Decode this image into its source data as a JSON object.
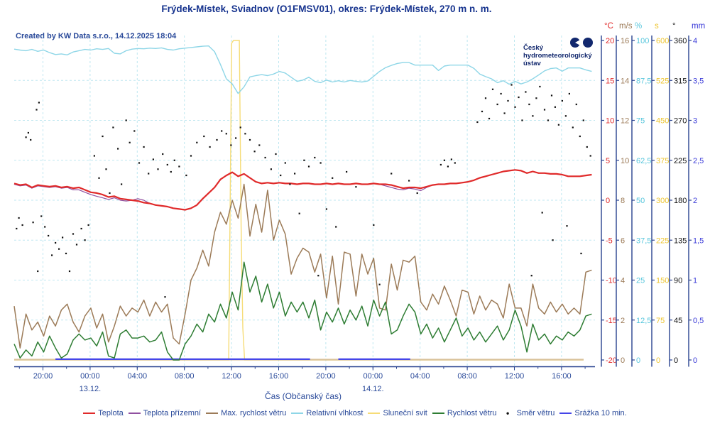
{
  "title": "Frýdek-Místek, Sviadnov (O1FMSV01), okres: Frýdek-Místek, 270 m n. m.",
  "created_by": "Created by KW Data s.r.o., 14.12.2025 18:04",
  "logo": {
    "line1": "Český",
    "line2": "hydrometeorologický",
    "line3": "ústav"
  },
  "xaxis": {
    "label": "Čas (Občanský čas)",
    "ticks": [
      "20:00",
      "00:00",
      "04:00",
      "08:00",
      "12:00",
      "16:00",
      "20:00",
      "00:00",
      "04:00",
      "08:00",
      "12:00",
      "16:00"
    ],
    "dates": [
      {
        "label": "13.12.",
        "tick_index": 1
      },
      {
        "label": "14.12.",
        "tick_index": 7
      }
    ]
  },
  "axes": [
    {
      "unit": "°C",
      "color": "#e02a2a",
      "scale": "temp",
      "labels": [
        "20",
        "15",
        "10",
        "5",
        "0",
        "-5",
        "-10",
        "-15",
        "-20"
      ]
    },
    {
      "unit": "m/s",
      "color": "#9c7b58",
      "scale": "wind",
      "labels": [
        "16",
        "14",
        "12",
        "10",
        "8",
        "6",
        "4",
        "2",
        "0"
      ]
    },
    {
      "unit": "%",
      "color": "#59c7dd",
      "scale": "hum",
      "labels": [
        "100",
        "87,5",
        "75",
        "62,5",
        "50",
        "37,5",
        "25",
        "12,5",
        "0"
      ]
    },
    {
      "unit": "s",
      "color": "#edc52f",
      "scale": "sun",
      "labels": [
        "600",
        "525",
        "450",
        "375",
        "300",
        "225",
        "150",
        "75",
        "0"
      ]
    },
    {
      "unit": "°",
      "color": "#111111",
      "scale": "dir",
      "labels": [
        "360",
        "315",
        "270",
        "225",
        "180",
        "135",
        "90",
        "45",
        "0"
      ]
    },
    {
      "unit": "mm",
      "color": "#3939d8",
      "scale": "mm",
      "labels": [
        "4",
        "3,5",
        "3",
        "2,5",
        "2",
        "1,5",
        "1",
        "0,5",
        "0"
      ]
    }
  ],
  "legend": [
    {
      "label": "Teplota",
      "color": "#e02a2a",
      "type": "line"
    },
    {
      "label": "Teplota přízemní",
      "color": "#9050a0",
      "type": "line"
    },
    {
      "label": "Max. rychlost větru",
      "color": "#9c7b58",
      "type": "line"
    },
    {
      "label": "Relativní vlhkost",
      "color": "#8ed6e7",
      "type": "line"
    },
    {
      "label": "Sluneční svit",
      "color": "#f6dc77",
      "type": "line"
    },
    {
      "label": "Rychlost větru",
      "color": "#2e7d33",
      "type": "line"
    },
    {
      "label": "Směr větru",
      "color": "#111111",
      "type": "dot"
    },
    {
      "label": "Srážka 10 min.",
      "color": "#4545e8",
      "type": "line"
    }
  ],
  "chart_data": {
    "type": "line",
    "title": "Frýdek-Místek, Sviadnov (O1FMSV01) meteogram, 12.12. 17:40 - 14.12. 18:00",
    "x_unit": "hours_from_start",
    "t_start": 0,
    "t_step": 0.5,
    "t_end": 49,
    "scales": {
      "temp": [
        -20,
        20
      ],
      "wind": [
        0,
        16
      ],
      "hum": [
        0,
        100
      ],
      "sun": [
        0,
        600
      ],
      "dir": [
        0,
        360
      ],
      "mm": [
        0,
        4
      ]
    },
    "series": [
      {
        "name": "Relativní vlhkost",
        "scale": "hum",
        "color": "#8ed6e7",
        "width": 1.4,
        "values": [
          97.3,
          97.0,
          96.8,
          97.2,
          96.6,
          97.0,
          96.2,
          95.6,
          95.8,
          95.5,
          96.4,
          96.8,
          97.2,
          97.0,
          97.4,
          97.2,
          97.5,
          96.0,
          95.8,
          96.8,
          97.3,
          97.5,
          97.4,
          97.6,
          97.5,
          97.7,
          97.2,
          97.0,
          97.4,
          97.6,
          97.8,
          98.0,
          98.2,
          98.3,
          96.5,
          92.5,
          88.0,
          86.4,
          83.4,
          85.5,
          88.6,
          89.0,
          89.3,
          89.0,
          89.5,
          90.3,
          89.8,
          88.5,
          87.2,
          87.6,
          88.5,
          87.2,
          86.8,
          87.6,
          87.0,
          87.4,
          87.0,
          87.5,
          87.2,
          87.0,
          87.3,
          88.8,
          90.3,
          91.5,
          92.2,
          92.8,
          93.1,
          93.1,
          92.3,
          92.3,
          92.3,
          92.3,
          90.6,
          92.0,
          92.3,
          92.3,
          92.3,
          92.3,
          91.3,
          89.5,
          88.7,
          88.0,
          86.8,
          87.4,
          86.3,
          87.2,
          86.4,
          87.0,
          88.0,
          89.2,
          90.5,
          91.2,
          91.4,
          90.4,
          91.4,
          91.4,
          91.4,
          90.8,
          90.3
        ]
      },
      {
        "name": "Max. rychlost větru",
        "scale": "wind",
        "color": "#9c7b58",
        "width": 1.5,
        "values": [
          2.7,
          0.6,
          2.3,
          1.5,
          1.9,
          1.2,
          2.2,
          1.7,
          2.5,
          2.8,
          1.9,
          1.4,
          2.2,
          2.6,
          1.6,
          2.3,
          0.9,
          1.7,
          2.7,
          2.2,
          2.6,
          2.4,
          3.0,
          2.2,
          2.9,
          2.4,
          2.8,
          1.1,
          0.8,
          2.3,
          4.0,
          4.6,
          5.5,
          4.7,
          6.4,
          7.4,
          6.8,
          8.0,
          7.1,
          8.8,
          6.2,
          7.8,
          6.4,
          8.5,
          6.0,
          7.0,
          6.3,
          4.3,
          5.1,
          5.6,
          5.4,
          4.4,
          5.3,
          3.1,
          5.2,
          2.8,
          5.4,
          5.3,
          3.2,
          5.3,
          4.3,
          5.1,
          2.6,
          2.5,
          4.8,
          3.5,
          5.0,
          4.9,
          5.2,
          2.9,
          2.5,
          3.3,
          2.8,
          3.7,
          3.0,
          2.2,
          3.5,
          3.4,
          2.3,
          3.2,
          2.5,
          3.0,
          2.8,
          2.1,
          3.8,
          2.6,
          2.6,
          1.7,
          3.8,
          2.6,
          2.3,
          2.9,
          2.4,
          2.8,
          2.3,
          2.6,
          2.3,
          4.4,
          4.5
        ]
      },
      {
        "name": "Rychlost větru",
        "scale": "wind",
        "color": "#2e7d33",
        "width": 1.5,
        "values": [
          0.8,
          0.1,
          0.5,
          0.2,
          0.9,
          0.4,
          1.2,
          0.6,
          0.1,
          0.3,
          1.0,
          1.3,
          1.0,
          1.1,
          0.7,
          1.4,
          0.2,
          0.1,
          1.3,
          1.5,
          1.1,
          1.1,
          1.2,
          0.9,
          1.0,
          1.4,
          0.4,
          0.0,
          0.0,
          0.8,
          1.2,
          1.8,
          1.4,
          2.3,
          1.9,
          2.8,
          2.1,
          3.4,
          2.5,
          4.9,
          3.4,
          4.2,
          2.9,
          3.8,
          2.6,
          3.4,
          2.2,
          2.9,
          2.4,
          2.9,
          2.1,
          3.0,
          1.5,
          2.4,
          1.9,
          2.6,
          1.8,
          2.5,
          2.0,
          2.7,
          1.7,
          3.0,
          2.2,
          2.9,
          1.3,
          1.5,
          2.2,
          2.8,
          2.4,
          1.3,
          1.8,
          1.1,
          1.6,
          0.9,
          1.5,
          2.1,
          1.2,
          1.6,
          1.0,
          1.4,
          0.9,
          1.3,
          1.7,
          1.0,
          1.5,
          2.5,
          1.7,
          0.4,
          1.8,
          1.0,
          1.3,
          0.8,
          1.2,
          1.0,
          1.4,
          1.2,
          1.5,
          2.2,
          2.3
        ]
      },
      {
        "name": "Teplota přízemní",
        "scale": "temp",
        "color": "#9050a0",
        "width": 1.2,
        "values": [
          2.0,
          1.8,
          1.9,
          1.5,
          1.8,
          1.7,
          1.6,
          1.7,
          1.5,
          1.6,
          1.3,
          1.3,
          1.0,
          0.7,
          0.5,
          0.3,
          0.1,
          0.3,
          0.0,
          -0.1,
          0.0,
          0.2,
          0.0,
          -0.4,
          -0.6,
          -0.7,
          -0.8,
          -1.0,
          -1.1,
          -1.2,
          -1.0,
          -0.6,
          0.2,
          0.9,
          1.6,
          2.6,
          3.1,
          3.5,
          3.0,
          3.3,
          2.8,
          2.3,
          2.1,
          2.2,
          2.1,
          2.2,
          2.1,
          2.1,
          2.0,
          2.1,
          2.1,
          2.0,
          2.0,
          2.1,
          2.0,
          2.1,
          2.0,
          2.0,
          2.1,
          2.0,
          2.0,
          2.1,
          2.0,
          1.8,
          1.6,
          1.4,
          1.3,
          1.5,
          1.4,
          1.2,
          1.6,
          1.9,
          2.0,
          2.0,
          2.1,
          2.1,
          2.2,
          2.3,
          2.5,
          2.8,
          3.0,
          3.2,
          3.4,
          3.6,
          3.7,
          3.8,
          3.7,
          3.4,
          3.6,
          3.4,
          3.4,
          3.3,
          3.3,
          3.2,
          3.0,
          3.0,
          3.0,
          3.1,
          3.2
        ]
      },
      {
        "name": "Teplota",
        "scale": "temp",
        "color": "#e02a2a",
        "width": 2.2,
        "values": [
          2.1,
          1.9,
          2.0,
          1.6,
          1.9,
          1.8,
          1.7,
          1.8,
          1.6,
          1.7,
          1.5,
          1.6,
          1.3,
          1.0,
          0.9,
          0.7,
          0.4,
          0.5,
          0.2,
          0.1,
          0.0,
          -0.1,
          -0.3,
          -0.4,
          -0.6,
          -0.7,
          -0.8,
          -1.0,
          -1.1,
          -1.2,
          -1.0,
          -0.6,
          0.2,
          0.9,
          1.6,
          2.6,
          3.1,
          3.5,
          3.0,
          3.3,
          2.8,
          2.3,
          2.1,
          2.2,
          2.1,
          2.2,
          2.1,
          2.1,
          2.0,
          2.1,
          2.1,
          2.0,
          2.0,
          2.1,
          2.0,
          2.1,
          2.0,
          2.0,
          2.1,
          2.0,
          2.0,
          2.1,
          2.0,
          2.0,
          1.9,
          1.7,
          1.5,
          1.6,
          1.6,
          1.5,
          1.7,
          1.9,
          2.0,
          2.0,
          2.1,
          2.1,
          2.2,
          2.3,
          2.5,
          2.8,
          3.0,
          3.2,
          3.4,
          3.6,
          3.7,
          3.8,
          3.7,
          3.4,
          3.6,
          3.4,
          3.4,
          3.3,
          3.3,
          3.2,
          3.0,
          3.0,
          3.0,
          3.1,
          3.2
        ]
      }
    ],
    "sunshine": {
      "name": "Sluneční svit",
      "scale": "sun",
      "color": "#f6dc77",
      "width": 1.4,
      "points": [
        [
          0,
          0
        ],
        [
          18.2,
          0
        ],
        [
          18.45,
          595
        ],
        [
          18.6,
          600
        ],
        [
          19.1,
          600
        ],
        [
          19.25,
          250
        ],
        [
          19.4,
          60
        ],
        [
          19.55,
          0
        ],
        [
          48.3,
          0
        ]
      ]
    },
    "precipitation": {
      "name": "Srážka 10 min.",
      "scale": "mm",
      "color": "#4545e8",
      "width": 2.2,
      "value": 0.01,
      "segments": [
        [
          3.5,
          25.1
        ],
        [
          27.5,
          33.6
        ]
      ]
    },
    "wind_direction": {
      "name": "Směr větru",
      "scale": "dir",
      "color": "#111111",
      "points": [
        [
          0.2,
          148
        ],
        [
          0.4,
          160
        ],
        [
          0.7,
          152
        ],
        [
          1.0,
          251
        ],
        [
          1.2,
          256
        ],
        [
          1.4,
          248
        ],
        [
          1.6,
          155
        ],
        [
          1.9,
          282
        ],
        [
          2.1,
          290
        ],
        [
          2.0,
          100
        ],
        [
          2.3,
          162
        ],
        [
          2.6,
          150
        ],
        [
          2.9,
          140
        ],
        [
          3.2,
          118
        ],
        [
          3.5,
          132
        ],
        [
          3.8,
          125
        ],
        [
          4.1,
          138
        ],
        [
          4.4,
          120
        ],
        [
          4.7,
          100
        ],
        [
          5.0,
          142
        ],
        [
          5.3,
          130
        ],
        [
          5.7,
          148
        ],
        [
          6.0,
          135
        ],
        [
          6.3,
          152
        ],
        [
          6.8,
          230
        ],
        [
          7.2,
          205
        ],
        [
          7.5,
          252
        ],
        [
          7.8,
          215
        ],
        [
          8.1,
          188
        ],
        [
          8.4,
          262
        ],
        [
          8.8,
          238
        ],
        [
          9.1,
          198
        ],
        [
          9.5,
          270
        ],
        [
          9.8,
          245
        ],
        [
          10.2,
          258
        ],
        [
          10.6,
          222
        ],
        [
          11.0,
          240
        ],
        [
          11.4,
          210
        ],
        [
          11.8,
          226
        ],
        [
          12.2,
          215
        ],
        [
          12.6,
          232
        ],
        [
          12.8,
          71
        ],
        [
          13.0,
          220
        ],
        [
          13.3,
          212
        ],
        [
          13.6,
          225
        ],
        [
          14.0,
          218
        ],
        [
          14.6,
          208
        ],
        [
          15.0,
          230
        ],
        [
          15.5,
          245
        ],
        [
          16.1,
          252
        ],
        [
          16.6,
          240
        ],
        [
          17.2,
          248
        ],
        [
          17.6,
          258
        ],
        [
          18.0,
          255
        ],
        [
          18.4,
          242
        ],
        [
          18.8,
          250
        ],
        [
          19.2,
          262
        ],
        [
          19.6,
          255
        ],
        [
          20.0,
          248
        ],
        [
          20.4,
          235
        ],
        [
          20.8,
          242
        ],
        [
          21.3,
          228
        ],
        [
          21.8,
          215
        ],
        [
          22.2,
          232
        ],
        [
          22.6,
          208
        ],
        [
          23.0,
          222
        ],
        [
          23.4,
          198
        ],
        [
          23.8,
          210
        ],
        [
          24.2,
          165
        ],
        [
          24.6,
          225
        ],
        [
          25.0,
          218
        ],
        [
          25.5,
          228
        ],
        [
          25.8,
          95
        ],
        [
          26.0,
          222
        ],
        [
          26.5,
          170
        ],
        [
          27.0,
          205
        ],
        [
          27.3,
          150
        ],
        [
          28.2,
          212
        ],
        [
          29.0,
          195
        ],
        [
          30.5,
          152
        ],
        [
          31.0,
          85
        ],
        [
          32.0,
          210
        ],
        [
          33.5,
          202
        ],
        [
          34.2,
          188
        ],
        [
          36.2,
          220
        ],
        [
          36.5,
          225
        ],
        [
          36.8,
          218
        ],
        [
          37.1,
          226
        ],
        [
          37.4,
          222
        ],
        [
          39.3,
          268
        ],
        [
          39.7,
          280
        ],
        [
          40.0,
          295
        ],
        [
          40.3,
          272
        ],
        [
          40.6,
          305
        ],
        [
          41.0,
          288
        ],
        [
          41.3,
          300
        ],
        [
          41.6,
          278
        ],
        [
          41.9,
          292
        ],
        [
          42.2,
          310
        ],
        [
          42.5,
          285
        ],
        [
          42.8,
          296
        ],
        [
          43.1,
          270
        ],
        [
          43.4,
          302
        ],
        [
          43.7,
          288
        ],
        [
          43.9,
          95
        ],
        [
          44.0,
          275
        ],
        [
          44.3,
          295
        ],
        [
          44.6,
          308
        ],
        [
          44.8,
          166
        ],
        [
          45.0,
          282
        ],
        [
          45.3,
          270
        ],
        [
          45.6,
          298
        ],
        [
          45.9,
          285
        ],
        [
          46.2,
          265
        ],
        [
          46.5,
          292
        ],
        [
          46.8,
          275
        ],
        [
          47.1,
          300
        ],
        [
          47.4,
          262
        ],
        [
          47.7,
          288
        ],
        [
          48.0,
          252
        ],
        [
          48.3,
          270
        ],
        [
          48.6,
          240
        ],
        [
          48.9,
          230
        ],
        [
          45.7,
          135
        ],
        [
          46.9,
          151
        ],
        [
          48.1,
          120
        ]
      ]
    },
    "colors": {
      "grid": "#bfe7f0",
      "axis": "#27418f",
      "baseline_tan": "#d9c199"
    },
    "layout": {
      "grid": "dashed",
      "legend_position": "bottom"
    }
  }
}
